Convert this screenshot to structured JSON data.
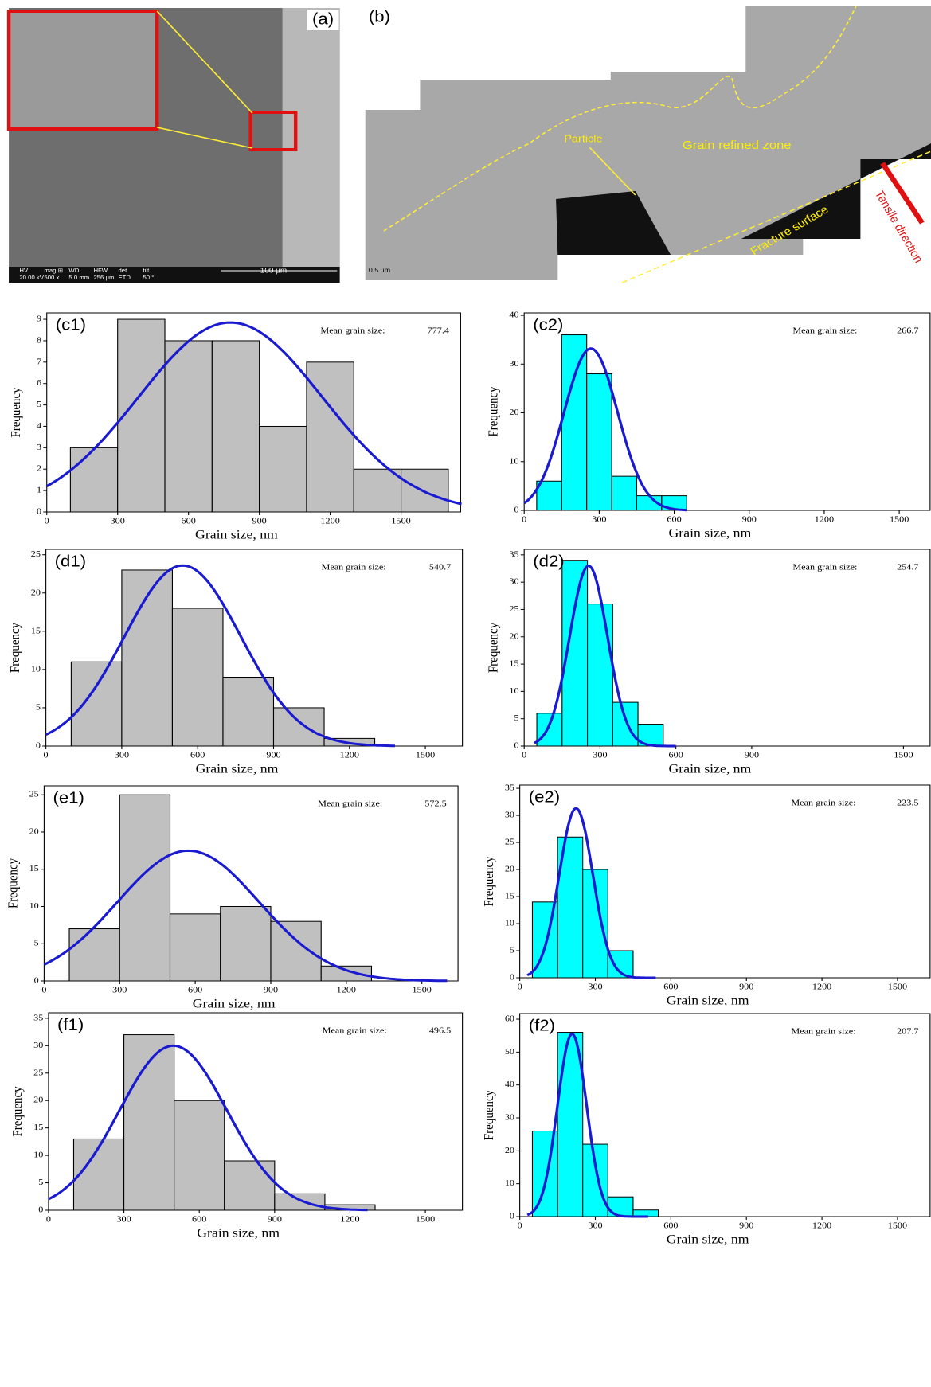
{
  "images": {
    "a": {
      "label": "(a)",
      "scale": "100 μm",
      "info": [
        "HV",
        "mag ⊞",
        "WD",
        "HFW",
        "det",
        "tilt",
        "20.00 kV",
        "500 x",
        "5.0 mm",
        "256 μm",
        "ETD",
        "50 °"
      ]
    },
    "b": {
      "label": "(b)",
      "particle": "Particle",
      "zone": "Grain refined zone",
      "surface": "Fracture surface",
      "direction": "Tensile direction",
      "scale": "0.5 μm"
    }
  },
  "chart_data": [
    {
      "type": "histogram",
      "label": "(c1)",
      "color": "#c0c0c0",
      "xlabel": "Grain size, nm",
      "ylabel": "Frequency",
      "mean_label": "Mean grain size:",
      "mean": 777.4,
      "fit_peak": 8.85,
      "fit_sd": 389,
      "fit_xrange": [
        0,
        1756
      ],
      "bins": [
        100,
        300,
        500,
        700,
        900,
        1100,
        1300,
        1500,
        1700
      ],
      "counts": [
        3,
        9,
        8,
        8,
        4,
        7,
        2,
        2
      ],
      "xlim": [
        0,
        1756
      ],
      "ylim": [
        0,
        9.3
      ],
      "xticks": [
        0,
        300,
        600,
        900,
        1200,
        1500
      ],
      "yticks": [
        0,
        1,
        2,
        3,
        4,
        5,
        6,
        7,
        8,
        9
      ]
    },
    {
      "type": "histogram",
      "label": "(c2)",
      "color": "#00ffff",
      "xlabel": "Grain size, nm",
      "ylabel": "Frequency",
      "mean_label": "Mean grain size:",
      "mean": 266.7,
      "fit_peak": 33.2,
      "fit_sd": 107,
      "fit_xrange": [
        0,
        650
      ],
      "bins": [
        50,
        150,
        250,
        350,
        450,
        550,
        650
      ],
      "counts": [
        6,
        36,
        28,
        7,
        3,
        3
      ],
      "xlim": [
        0,
        1627
      ],
      "ylim": [
        0,
        40.5
      ],
      "xticks": [
        0,
        300,
        600,
        900,
        1200,
        1500
      ],
      "yticks": [
        0,
        10,
        20,
        30,
        40
      ]
    },
    {
      "type": "histogram",
      "label": "(d1)",
      "color": "#c0c0c0",
      "xlabel": "Grain size, nm",
      "ylabel": "Frequency",
      "mean_label": "Mean grain size:",
      "mean": 540.7,
      "fit_peak": 23.6,
      "fit_sd": 230,
      "fit_xrange": [
        0,
        1380
      ],
      "bins": [
        100,
        300,
        500,
        700,
        900,
        1100,
        1300
      ],
      "counts": [
        11,
        23,
        18,
        9,
        5,
        1
      ],
      "xlim": [
        0,
        1650
      ],
      "ylim": [
        0,
        25.7
      ],
      "xticks": [
        0,
        300,
        600,
        900,
        1200,
        1500
      ],
      "yticks": [
        0,
        5,
        10,
        15,
        20,
        25
      ]
    },
    {
      "type": "histogram",
      "label": "(d2)",
      "color": "#00ffff",
      "xlabel": "Grain size, nm",
      "ylabel": "Frequency",
      "mean_label": "Mean grain size:",
      "mean": 254.7,
      "fit_peak": 33,
      "fit_sd": 75,
      "fit_xrange": [
        40,
        600
      ],
      "bins": [
        50,
        150,
        250,
        350,
        450,
        550
      ],
      "counts": [
        6,
        34,
        26,
        8,
        4
      ],
      "xlim": [
        0,
        1609
      ],
      "ylim": [
        0,
        36
      ],
      "xticks": [
        0,
        300,
        600,
        900,
        1500
      ],
      "yticks": [
        0,
        5,
        10,
        15,
        20,
        25,
        30,
        35
      ]
    },
    {
      "type": "histogram",
      "label": "(e1)",
      "color": "#c0c0c0",
      "xlabel": "Grain size, nm",
      "ylabel": "Frequency",
      "mean_label": "Mean grain size:",
      "mean": 572.5,
      "fit_peak": 17.5,
      "fit_sd": 281,
      "fit_xrange": [
        0,
        1600
      ],
      "bins": [
        100,
        300,
        500,
        700,
        900,
        1100,
        1300
      ],
      "counts": [
        7,
        25,
        9,
        10,
        8,
        2
      ],
      "xlim": [
        0,
        1647
      ],
      "ylim": [
        0,
        26.2
      ],
      "xticks": [
        0,
        300,
        600,
        900,
        1200,
        1500
      ],
      "yticks": [
        0,
        5,
        10,
        15,
        20,
        25
      ]
    },
    {
      "type": "histogram",
      "label": "(e2)",
      "color": "#00ffff",
      "xlabel": "Grain size, nm",
      "ylabel": "Frequency",
      "mean_label": "Mean grain size:",
      "mean": 223.5,
      "fit_peak": 31.3,
      "fit_sd": 67,
      "fit_xrange": [
        30,
        540
      ],
      "bins": [
        50,
        150,
        250,
        350,
        450
      ],
      "counts": [
        14,
        26,
        20,
        5
      ],
      "xlim": [
        0,
        1633
      ],
      "ylim": [
        0,
        35.6
      ],
      "xticks": [
        0,
        300,
        600,
        900,
        1200,
        1500
      ],
      "yticks": [
        0,
        5,
        10,
        15,
        20,
        25,
        30,
        35
      ]
    },
    {
      "type": "histogram",
      "label": "(f1)",
      "color": "#c0c0c0",
      "xlabel": "Grain size, nm",
      "ylabel": "Frequency",
      "mean_label": "Mean grain size:",
      "mean": 496.5,
      "fit_peak": 30,
      "fit_sd": 214,
      "fit_xrange": [
        0,
        1270
      ],
      "bins": [
        100,
        300,
        500,
        700,
        900,
        1100,
        1300
      ],
      "counts": [
        13,
        32,
        20,
        9,
        3,
        1
      ],
      "xlim": [
        0,
        1651
      ],
      "ylim": [
        0,
        36
      ],
      "xticks": [
        0,
        300,
        600,
        900,
        1200,
        1500
      ],
      "yticks": [
        0,
        5,
        10,
        15,
        20,
        25,
        30,
        35
      ]
    },
    {
      "type": "histogram",
      "label": "(f2)",
      "color": "#00ffff",
      "xlabel": "Grain size, nm",
      "ylabel": "Frequency",
      "mean_label": "Mean grain size:",
      "mean": 207.7,
      "fit_peak": 55.5,
      "fit_sd": 58,
      "fit_xrange": [
        30,
        510
      ],
      "bins": [
        50,
        150,
        250,
        350,
        450,
        550
      ],
      "counts": [
        26,
        56,
        22,
        6,
        2
      ],
      "xlim": [
        0,
        1633
      ],
      "ylim": [
        0,
        61.7
      ],
      "xticks": [
        0,
        300,
        600,
        900,
        1200,
        1500
      ],
      "yticks": [
        0,
        10,
        20,
        30,
        40,
        50,
        60
      ]
    }
  ]
}
